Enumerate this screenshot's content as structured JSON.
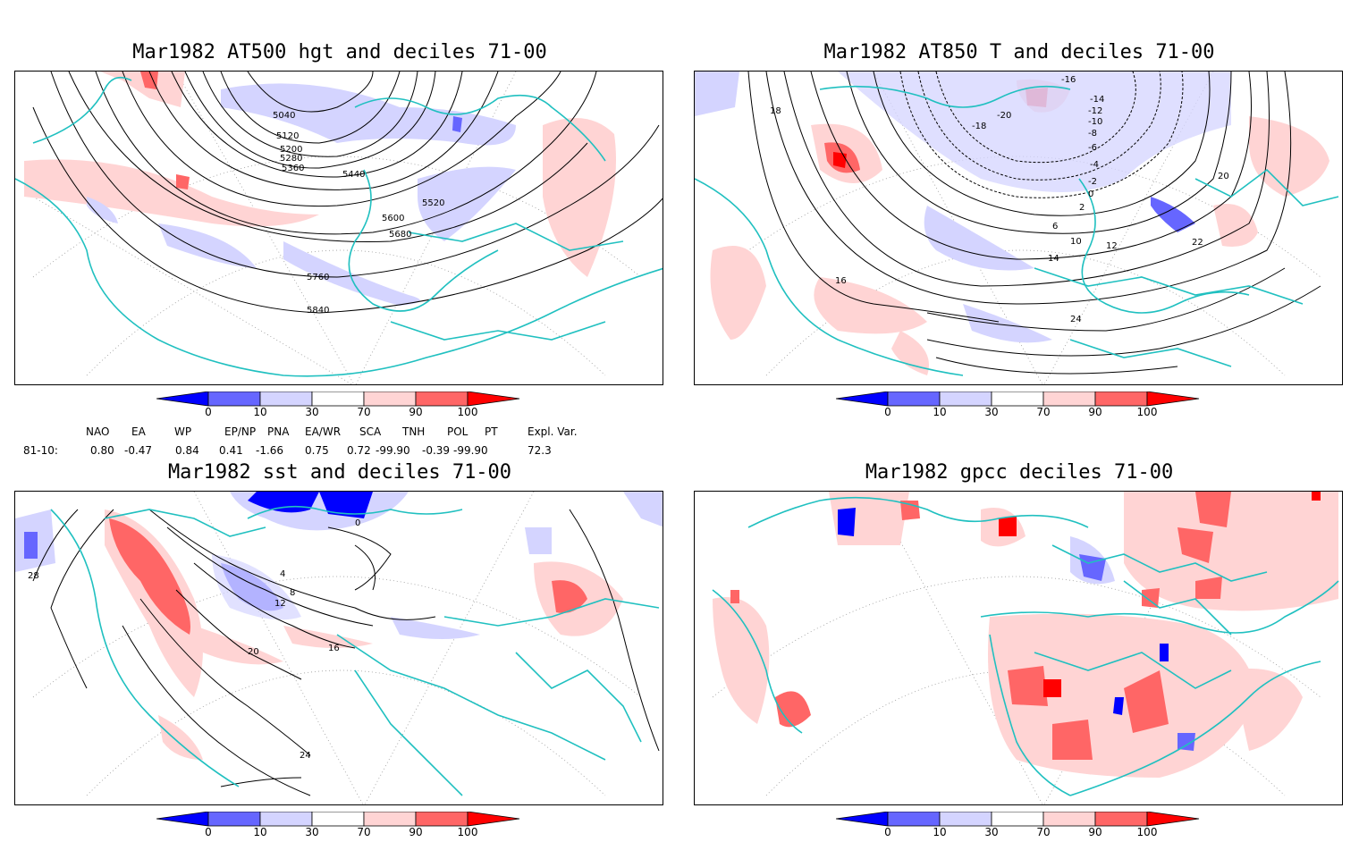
{
  "panels": [
    {
      "title": "Mar1982 AT500 hgt and deciles 71-00",
      "contour_labels": [
        "5040",
        "5120",
        "5200",
        "5280",
        "5360",
        "5440",
        "5520",
        "5600",
        "5680",
        "5760",
        "5840"
      ]
    },
    {
      "title": "Mar1982 AT850 T and deciles 71-00",
      "contour_labels": [
        "-16",
        "-14",
        "-12",
        "-10",
        "-8",
        "-6",
        "-4",
        "-2",
        "0",
        "2",
        "6",
        "10",
        "12",
        "14",
        "16",
        "18",
        "20",
        "22",
        "24",
        "-18",
        "-20"
      ]
    },
    {
      "title": "Mar1982 sst and deciles 71-00",
      "contour_labels": [
        "0",
        "4",
        "8",
        "12",
        "16",
        "20",
        "24",
        "28"
      ]
    },
    {
      "title": "Mar1982 gpcc deciles 71-00",
      "contour_labels": []
    }
  ],
  "colorbar": {
    "labels": [
      "0",
      "10",
      "30",
      "70",
      "90",
      "100"
    ],
    "colors": [
      "#0000ff",
      "#6666ff",
      "#d4d4ff",
      "#ffffff",
      "#ffd4d4",
      "#ff6666",
      "#ff0000"
    ]
  },
  "indices": {
    "headers": [
      "NAO",
      "EA",
      "WP",
      "EP/NP",
      "PNA",
      "EA/WR",
      "SCA",
      "TNH",
      "POL",
      "PT",
      "Expl. Var."
    ],
    "row_label": "81-10:",
    "values": [
      "0.80",
      "-0.47",
      "0.84",
      "0.41",
      "-1.66",
      "0.75",
      "0.72",
      "-99.90",
      "-0.39",
      "-99.90",
      "72.3"
    ]
  },
  "map_style": {
    "coast_color": "#20c0c0",
    "contour_color": "#000000",
    "grid_color": "#999999"
  }
}
